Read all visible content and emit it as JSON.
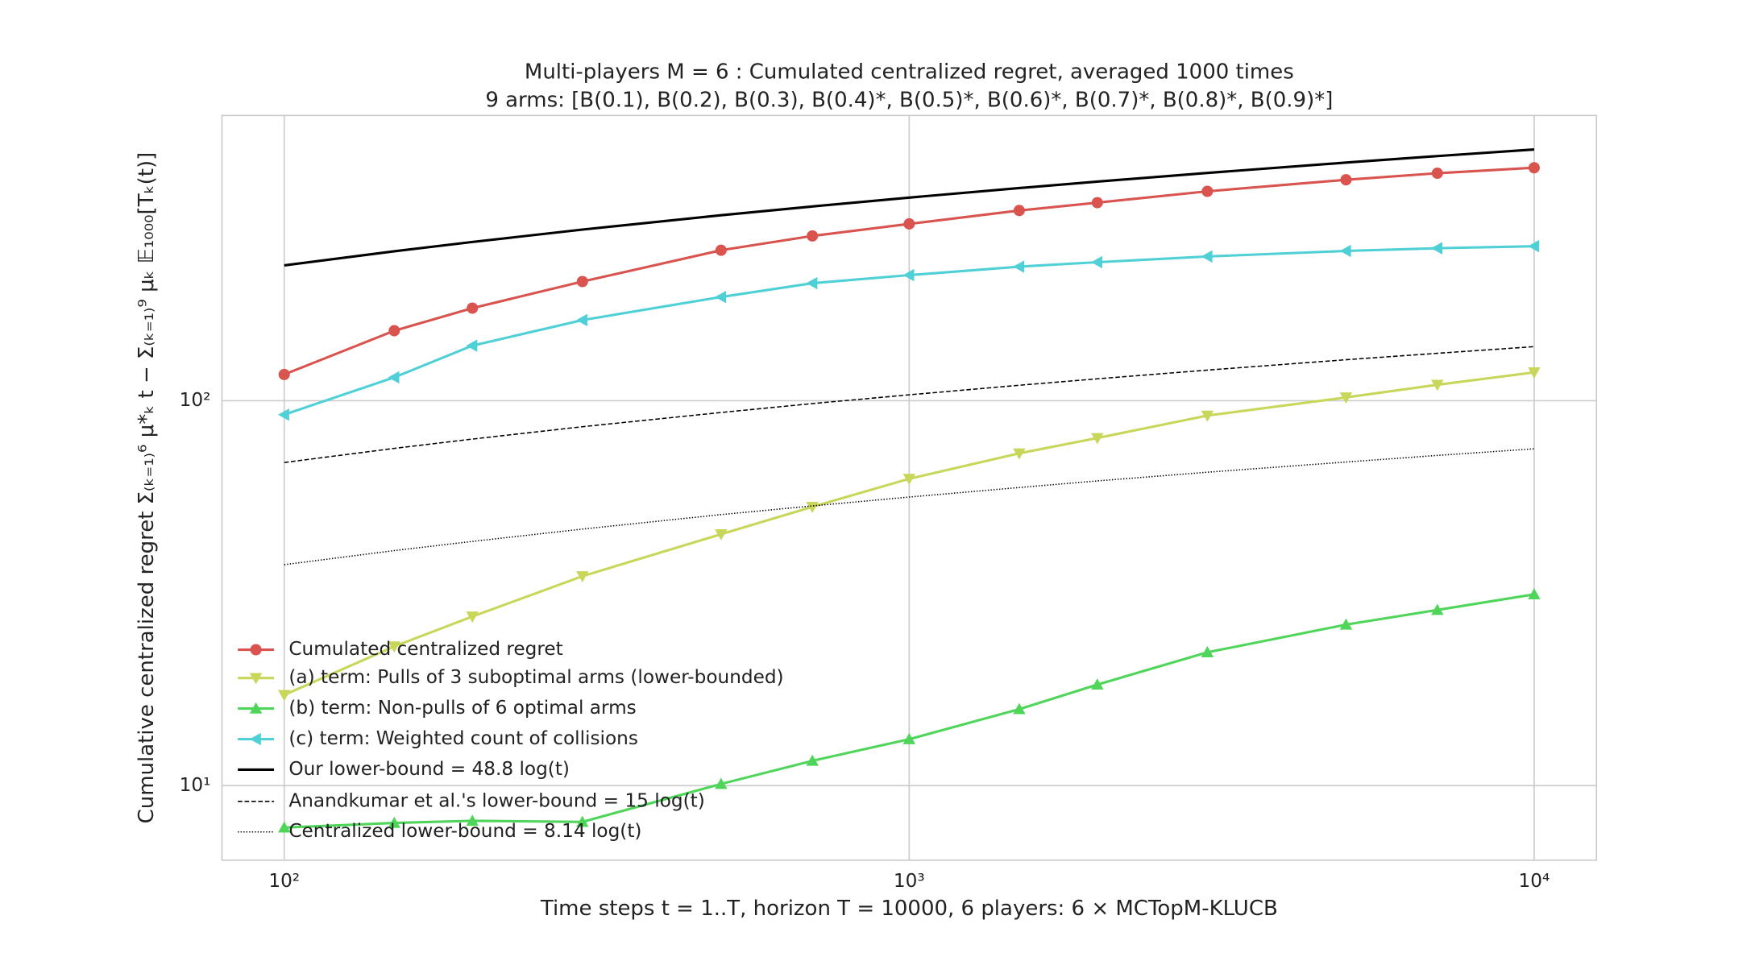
{
  "chart_data": {
    "type": "line",
    "title": "Multi-players M = 6 : Cumulated centralized regret, averaged 1000 times",
    "subtitle": "9 arms: [B(0.1), B(0.2), B(0.3), B(0.4)*, B(0.5)*, B(0.6)*, B(0.7)*, B(0.8)*, B(0.9)*]",
    "x_label": "Time steps t = 1..T, horizon T = 10000, 6 players: 6 × MCTopM-KLUCB",
    "y_label": "Cumulative centralized regret Σ₍ₖ₌₁₎⁶ μ*ₖ t − Σ₍ₖ₌₁₎⁹ μₖ 𝔼₁₀₀₀[Tₖ(t)]",
    "x_scale": "log",
    "y_scale": "log",
    "grid": true,
    "legend_position": "lower left",
    "xlim": [
      79.5,
      12580
    ],
    "ylim": [
      6.4,
      551
    ],
    "xticks": [
      {
        "value": 100,
        "label": "10²"
      },
      {
        "value": 1000,
        "label": "10³"
      },
      {
        "value": 10000,
        "label": "10⁴"
      }
    ],
    "yticks": [
      {
        "value": 10,
        "label": "10¹"
      },
      {
        "value": 100,
        "label": "10²"
      }
    ],
    "x": [
      100,
      150,
      200,
      300,
      500,
      700,
      1000,
      1500,
      2000,
      3000,
      5000,
      7000,
      10000
    ],
    "series": [
      {
        "name": "Cumulated centralized regret",
        "color": "#d9534f",
        "marker": "circle",
        "dash": "solid",
        "values": [
          117,
          152,
          174,
          204,
          246,
          268,
          288,
          312,
          327,
          350,
          375,
          390,
          403
        ]
      },
      {
        "name": "(a) term: Pulls of 3 suboptimal arms (lower-bounded)",
        "color": "#c8d65a",
        "marker": "triangle-down",
        "dash": "solid",
        "values": [
          17.2,
          23,
          27.5,
          35,
          45,
          53,
          62.7,
          73,
          80,
          91.5,
          102,
          110,
          118.5
        ]
      },
      {
        "name": "(b) term: Non-pulls of 6 optimal arms",
        "color": "#4fd65a",
        "marker": "triangle-up",
        "dash": "solid",
        "values": [
          7.78,
          8.0,
          8.1,
          8.05,
          10.1,
          11.6,
          13.2,
          15.8,
          18.3,
          22.2,
          26.2,
          28.6,
          31.4
        ]
      },
      {
        "name": "(c) term: Weighted count of collisions",
        "color": "#4fd0d6",
        "marker": "triangle-left",
        "dash": "solid",
        "values": [
          92,
          115,
          139,
          162,
          186,
          202,
          212,
          223,
          229,
          237,
          245,
          249,
          252
        ]
      },
      {
        "name": "Our lower-bound = 48.8 log(t)",
        "color": "#000000",
        "marker": null,
        "dash": "solid",
        "values": [
          224.7,
          244.5,
          258.5,
          278.4,
          303.3,
          319.7,
          337.1,
          356.9,
          370.9,
          390.7,
          415.6,
          432.1,
          449.5
        ]
      },
      {
        "name": "Anandkumar et al.'s lower-bound = 15 log(t)",
        "color": "#000000",
        "marker": null,
        "dash": "dashed",
        "values": [
          69.1,
          75.2,
          79.5,
          85.6,
          93.2,
          98.3,
          103.6,
          109.7,
          114.0,
          120.1,
          127.8,
          132.8,
          138.2
        ]
      },
      {
        "name": "Centralized lower-bound = 8.14 log(t)",
        "color": "#000000",
        "marker": null,
        "dash": "dotted",
        "values": [
          37.5,
          40.8,
          43.1,
          46.4,
          50.6,
          53.3,
          56.2,
          59.5,
          61.9,
          65.2,
          69.3,
          72.1,
          75.0
        ]
      }
    ]
  }
}
